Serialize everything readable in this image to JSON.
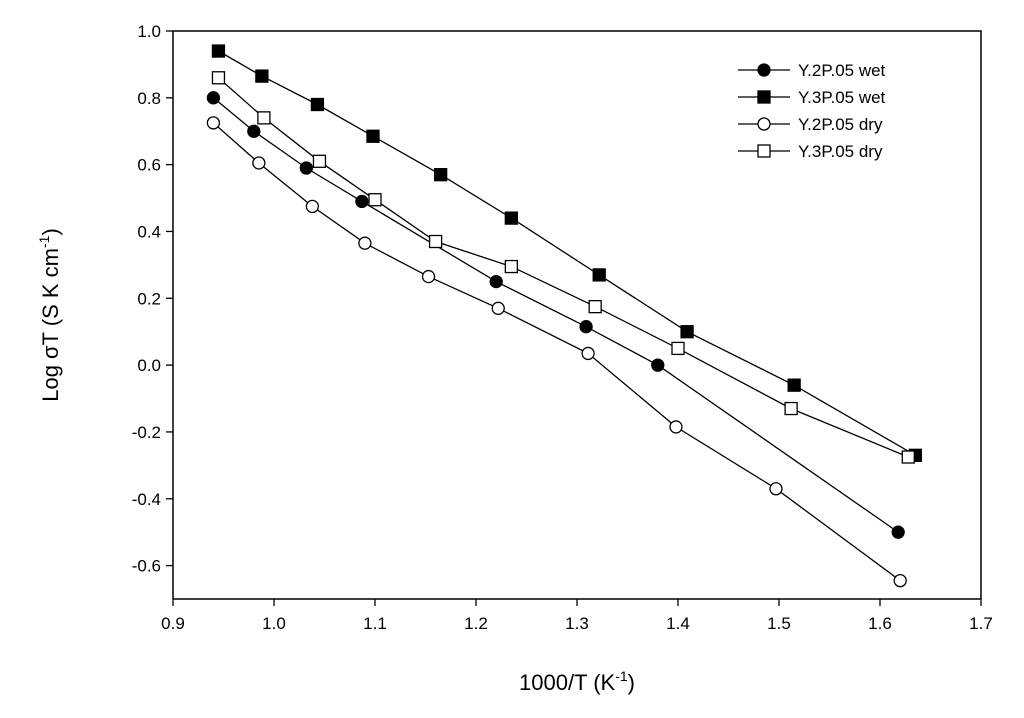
{
  "chart_data": {
    "type": "scatter",
    "title": "",
    "xlabel": "1000/T (K",
    "xlabel_sup": "-1",
    "xlabel_suffix": ")",
    "ylabel": "Log σT (S K cm",
    "ylabel_sup": "-1",
    "ylabel_suffix": ")",
    "xlim": [
      0.9,
      1.7
    ],
    "ylim": [
      -0.7,
      1.0
    ],
    "x_ticks": [
      "0.9",
      "1.0",
      "1.1",
      "1.2",
      "1.3",
      "1.4",
      "1.5",
      "1.6",
      "1.7"
    ],
    "y_ticks": [
      "1.0",
      "0.8",
      "0.6",
      "0.4",
      "0.2",
      "0.0",
      "-0.2",
      "-0.4",
      "-0.6"
    ],
    "legend_position": "top-right",
    "series": [
      {
        "name": "Y.2P.05 wet",
        "marker": "circle-filled",
        "x": [
          0.94,
          0.98,
          1.032,
          1.087,
          1.22,
          1.309,
          1.38,
          1.618
        ],
        "y": [
          0.8,
          0.7,
          0.59,
          0.49,
          0.25,
          0.115,
          0.0,
          -0.5
        ]
      },
      {
        "name": "Y.3P.05 wet",
        "marker": "square-filled",
        "x": [
          0.945,
          0.988,
          1.043,
          1.098,
          1.165,
          1.235,
          1.322,
          1.409,
          1.515,
          1.635
        ],
        "y": [
          0.94,
          0.865,
          0.78,
          0.685,
          0.57,
          0.44,
          0.27,
          0.1,
          -0.06,
          -0.27
        ]
      },
      {
        "name": "Y.2P.05 dry",
        "marker": "circle-open",
        "x": [
          0.94,
          0.985,
          1.038,
          1.09,
          1.153,
          1.222,
          1.311,
          1.398,
          1.497,
          1.62
        ],
        "y": [
          0.725,
          0.605,
          0.475,
          0.365,
          0.265,
          0.17,
          0.035,
          -0.185,
          -0.37,
          -0.645
        ]
      },
      {
        "name": "Y.3P.05 dry",
        "marker": "square-open",
        "x": [
          0.945,
          0.99,
          1.045,
          1.1,
          1.16,
          1.235,
          1.318,
          1.4,
          1.512,
          1.628
        ],
        "y": [
          0.86,
          0.74,
          0.61,
          0.495,
          0.37,
          0.295,
          0.175,
          0.05,
          -0.13,
          -0.275
        ]
      }
    ]
  }
}
